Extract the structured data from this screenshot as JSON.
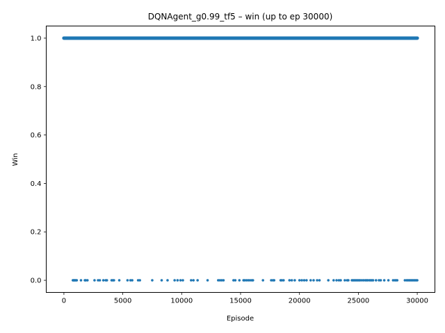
{
  "chart_data": {
    "type": "scatter",
    "title": "DQNAgent_g0.99_tf5 – win (up to ep 30000)",
    "xlabel": "Episode",
    "ylabel": "Win",
    "xlim": [
      -1500,
      31500
    ],
    "ylim": [
      -0.05,
      1.05
    ],
    "xticks": [
      0,
      5000,
      10000,
      15000,
      20000,
      25000,
      30000
    ],
    "xtick_labels": [
      "0",
      "5000",
      "10000",
      "15000",
      "20000",
      "25000",
      "30000"
    ],
    "yticks": [
      0.0,
      0.2,
      0.4,
      0.6,
      0.8,
      1.0
    ],
    "ytick_labels": [
      "0.0",
      "0.2",
      "0.4",
      "0.6",
      "0.8",
      "1.0"
    ],
    "grid": false,
    "legend": "none",
    "color": "#1f77b4",
    "series": [
      {
        "win_value": 1.0,
        "x_start": 0,
        "x_end": 30000,
        "note": "dense continuous band of wins across all episodes"
      },
      {
        "win_value": 0.0,
        "x": [
          760,
          820,
          880,
          940,
          1010,
          1090,
          1450,
          1780,
          1850,
          2000,
          2600,
          2900,
          3050,
          3350,
          3550,
          3650,
          4050,
          4150,
          4250,
          4700,
          5400,
          5650,
          5800,
          6300,
          6450,
          7500,
          8300,
          8800,
          9400,
          9650,
          9900,
          10100,
          10800,
          11000,
          11350,
          12200,
          13100,
          13250,
          13400,
          13550,
          14400,
          14550,
          14900,
          15250,
          15350,
          15500,
          15650,
          15800,
          15950,
          16050,
          16900,
          17600,
          17750,
          17850,
          18400,
          18500,
          18650,
          19150,
          19350,
          19600,
          20000,
          20200,
          20400,
          20600,
          20950,
          21200,
          21500,
          21700,
          22450,
          22900,
          23150,
          23350,
          23500,
          23850,
          24050,
          24150,
          24450,
          24550,
          24650,
          24750,
          24850,
          24950,
          25050,
          25150,
          25300,
          25450,
          25600,
          25700,
          25800,
          25950,
          26050,
          26150,
          26250,
          26500,
          26750,
          26900,
          27200,
          27550,
          27950,
          28100,
          28200,
          28300,
          28950,
          29100,
          29200,
          29300,
          29400,
          29500,
          29600,
          29700,
          29800,
          29900,
          30000
        ]
      }
    ]
  }
}
